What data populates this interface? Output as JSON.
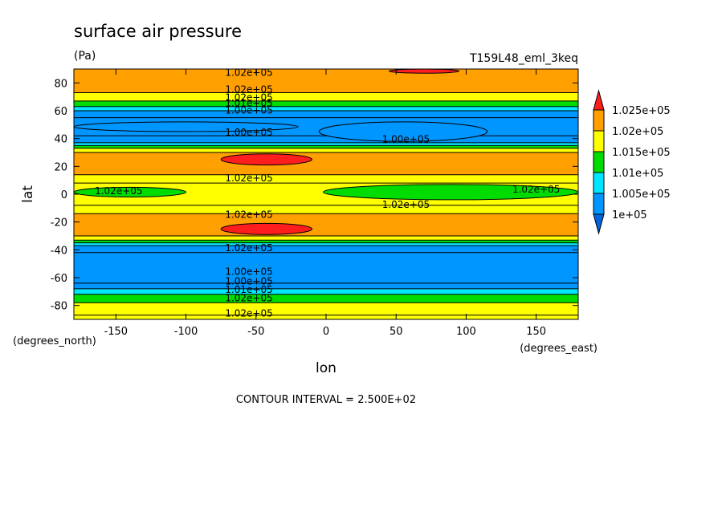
{
  "chart_data": {
    "type": "heatmap",
    "title": "surface air pressure",
    "units": "(Pa)",
    "experiment": "T159L48_eml_3keq",
    "xlabel": "lon",
    "ylabel": "lat",
    "x_units": "(degrees_east)",
    "y_units": "(degrees_north)",
    "xlim": [
      -180,
      180
    ],
    "ylim": [
      -90,
      90
    ],
    "x_ticks": [
      -150,
      -100,
      -50,
      0,
      50,
      100,
      150
    ],
    "y_ticks": [
      -80,
      -60,
      -40,
      -20,
      0,
      20,
      40,
      60,
      80
    ],
    "footer": "CONTOUR INTERVAL = 2.500E+02",
    "contour_interval": 250,
    "grid": false,
    "legend": {
      "placement": "right",
      "levels": [
        100000,
        100500,
        101000,
        101500,
        102000,
        102500
      ],
      "labels": [
        "1e+05",
        "1.005e+05",
        "1.01e+05",
        "1.015e+05",
        "1.02e+05",
        "1.025e+05"
      ],
      "colors": [
        "#0096ff",
        "#00e6ff",
        "#00dc00",
        "#ffff00",
        "#ffa000",
        "#ff1e1e",
        "#0064dc"
      ]
    },
    "zonal_bands": [
      {
        "lat": [
          -90,
          -87
        ],
        "value": 101900
      },
      {
        "lat": [
          -87,
          -78
        ],
        "value": 101700
      },
      {
        "lat": [
          -78,
          -72
        ],
        "value": 101300
      },
      {
        "lat": [
          -72,
          -68
        ],
        "value": 100800
      },
      {
        "lat": [
          -68,
          -64
        ],
        "value": 100300
      },
      {
        "lat": [
          -64,
          -42
        ],
        "value": 100200
      },
      {
        "lat": [
          -42,
          -37
        ],
        "value": 100300
      },
      {
        "lat": [
          -37,
          -35
        ],
        "value": 100800
      },
      {
        "lat": [
          -35,
          -33
        ],
        "value": 101300
      },
      {
        "lat": [
          -33,
          -30
        ],
        "value": 101800
      },
      {
        "lat": [
          -30,
          -14
        ],
        "value": 102200
      },
      {
        "lat": [
          -14,
          -8
        ],
        "value": 101800
      },
      {
        "lat": [
          -8,
          8
        ],
        "value": 101600
      },
      {
        "lat": [
          8,
          14
        ],
        "value": 101800
      },
      {
        "lat": [
          14,
          30
        ],
        "value": 102200
      },
      {
        "lat": [
          30,
          33
        ],
        "value": 101800
      },
      {
        "lat": [
          33,
          35
        ],
        "value": 101300
      },
      {
        "lat": [
          35,
          37
        ],
        "value": 100800
      },
      {
        "lat": [
          37,
          42
        ],
        "value": 100300
      },
      {
        "lat": [
          42,
          55
        ],
        "value": 100200
      },
      {
        "lat": [
          55,
          60
        ],
        "value": 100300
      },
      {
        "lat": [
          60,
          63
        ],
        "value": 100800
      },
      {
        "lat": [
          63,
          67
        ],
        "value": 101300
      },
      {
        "lat": [
          67,
          73
        ],
        "value": 101800
      },
      {
        "lat": [
          73,
          90
        ],
        "value": 102200
      }
    ],
    "features": [
      {
        "lon": [
          -75,
          -10
        ],
        "lat": [
          21,
          29
        ],
        "value": 102600
      },
      {
        "lon": [
          -75,
          -10
        ],
        "lat": [
          -29,
          -21
        ],
        "value": 102600
      },
      {
        "lon": [
          -2,
          180
        ],
        "lat": [
          -4,
          7
        ],
        "value": 101200
      },
      {
        "lon": [
          -180,
          -100
        ],
        "lat": [
          -2,
          5
        ],
        "value": 101200
      },
      {
        "lon": [
          -5,
          115
        ],
        "lat": [
          38,
          52
        ],
        "value": 100000
      },
      {
        "lon": [
          -180,
          -20
        ],
        "lat": [
          45,
          52
        ],
        "value": 100000
      },
      {
        "lon": [
          45,
          95
        ],
        "lat": [
          87,
          90
        ],
        "value": 102600
      }
    ],
    "contour_labels": [
      {
        "text": "1.02e+05",
        "lon": -55,
        "lat": 88
      },
      {
        "text": "1.02e+05",
        "lon": -55,
        "lat": 76
      },
      {
        "text": "1.02e+05",
        "lon": -55,
        "lat": 70
      },
      {
        "text": "1.01e+05",
        "lon": -55,
        "lat": 66
      },
      {
        "text": "1.00e+05",
        "lon": -55,
        "lat": 61
      },
      {
        "text": "1.00e+05",
        "lon": -55,
        "lat": 45
      },
      {
        "text": "1.00e+05",
        "lon": 57,
        "lat": 40
      },
      {
        "text": "1.02e+05",
        "lon": -55,
        "lat": 12
      },
      {
        "text": "1.02e+05",
        "lon": -148,
        "lat": 3
      },
      {
        "text": "1.02e+05",
        "lon": 57,
        "lat": -7
      },
      {
        "text": "1.02e+05",
        "lon": 150,
        "lat": 4
      },
      {
        "text": "1.02e+05",
        "lon": -55,
        "lat": -14
      },
      {
        "text": "1.02e+05",
        "lon": -55,
        "lat": -38
      },
      {
        "text": "1.00e+05",
        "lon": -55,
        "lat": -55
      },
      {
        "text": "1.00e+05",
        "lon": -55,
        "lat": -62
      },
      {
        "text": "1.01e+05",
        "lon": -55,
        "lat": -68
      },
      {
        "text": "1.02e+05",
        "lon": -55,
        "lat": -74
      },
      {
        "text": "1.02e+05",
        "lon": -55,
        "lat": -85
      }
    ]
  }
}
